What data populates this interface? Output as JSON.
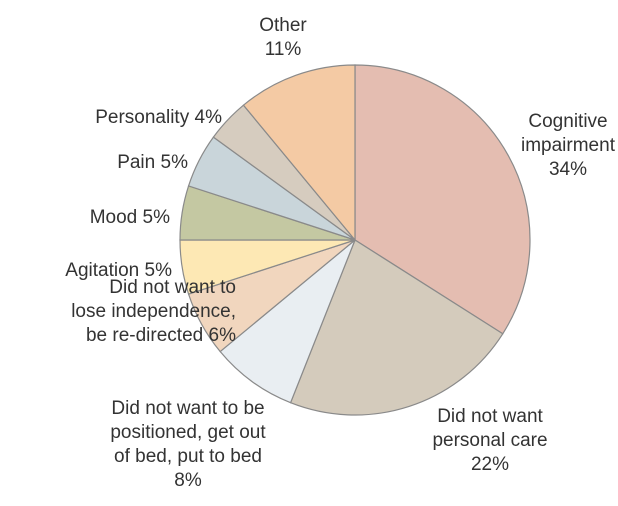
{
  "chart_data": {
    "type": "pie",
    "categories": [
      "Cognitive\nimpairment",
      "Did not want\npersonal care",
      "Did not want to be\npositioned, get out\nof bed, put to bed",
      "Did not want to\nlose independence,\nbe re-directed",
      "Agitation",
      "Mood",
      "Pain",
      "Personality",
      "Other"
    ],
    "values": [
      34,
      22,
      8,
      6,
      5,
      5,
      5,
      4,
      11
    ],
    "value_labels": [
      "34%",
      "22%",
      "8%",
      "6%",
      "5%",
      "5%",
      "5%",
      "4%",
      "11%"
    ],
    "colors": [
      "#e4bdb1",
      "#d4cbbc",
      "#e9eef2",
      "#f1d6be",
      "#fde8b4",
      "#c4c8a2",
      "#c9d5da",
      "#d6ccbf",
      "#f4caa4"
    ]
  }
}
